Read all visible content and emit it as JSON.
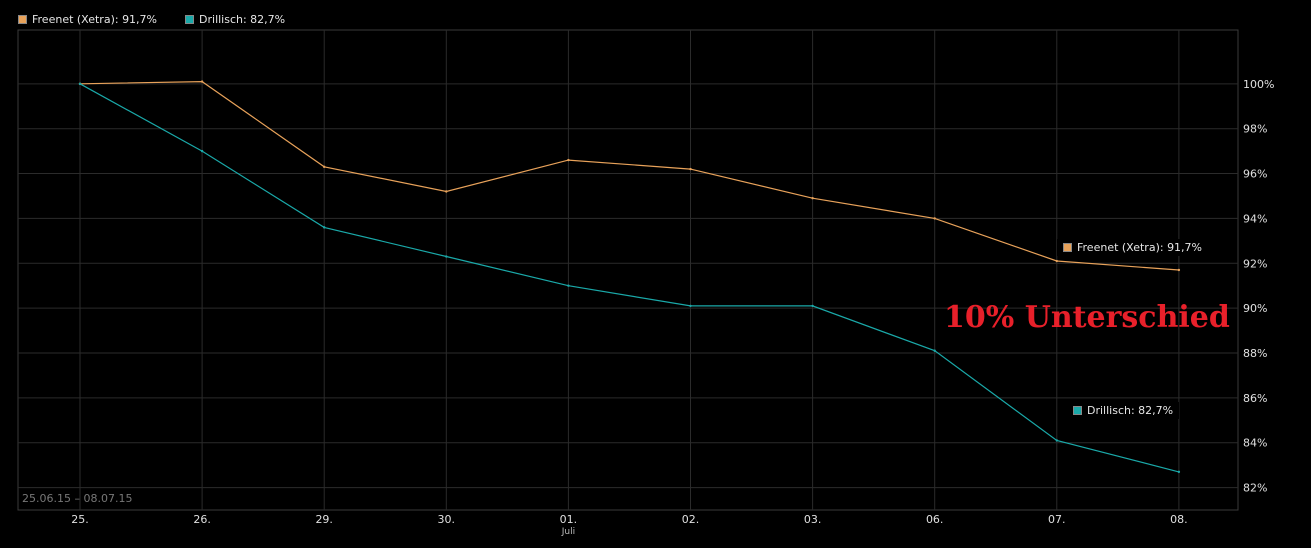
{
  "legend": [
    {
      "label": "Freenet (Xetra): 91,7%",
      "color": "#e8a25a"
    },
    {
      "label": "Drillisch: 82,7%",
      "color": "#1aa9a9"
    }
  ],
  "annotation": "10% Unterschied",
  "date_range": "25.06.15 – 08.07.15",
  "chart_data": {
    "type": "line",
    "categories": [
      "25.",
      "26.",
      "29.",
      "30.",
      "01.",
      "02.",
      "03.",
      "06.",
      "07.",
      "08."
    ],
    "month_label": "Juli",
    "y_ticks": [
      "82%",
      "84%",
      "86%",
      "88%",
      "90%",
      "92%",
      "94%",
      "96%",
      "98%",
      "100%"
    ],
    "ylim": [
      81,
      102.4
    ],
    "grid": true,
    "legend_position": "top-left",
    "series": [
      {
        "name": "Freenet (Xetra): 91,7%",
        "color": "#e8a25a",
        "values": [
          100.0,
          100.1,
          96.3,
          95.2,
          96.6,
          96.2,
          94.9,
          94.0,
          92.1,
          91.7
        ]
      },
      {
        "name": "Drillisch: 82,7%",
        "color": "#1aa9a9",
        "values": [
          100.0,
          97.0,
          93.6,
          92.3,
          91.0,
          90.1,
          90.1,
          88.1,
          84.1,
          82.7
        ]
      }
    ],
    "end_labels": [
      {
        "series": 0,
        "text": "Freenet (Xetra): 91,7%"
      },
      {
        "series": 1,
        "text": "Drillisch: 82,7%"
      }
    ]
  }
}
